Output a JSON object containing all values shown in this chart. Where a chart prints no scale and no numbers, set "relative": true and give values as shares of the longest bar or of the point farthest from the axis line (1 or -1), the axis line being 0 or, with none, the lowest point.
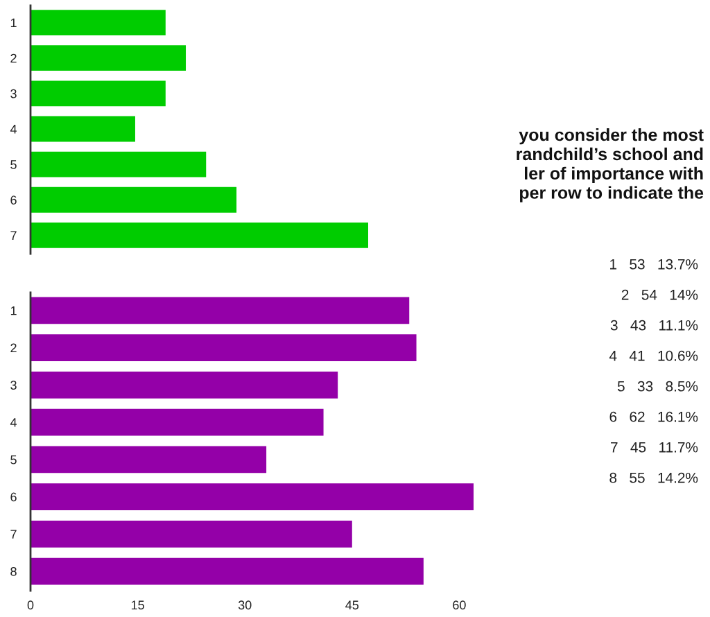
{
  "chart_data": [
    {
      "type": "bar",
      "orientation": "horizontal",
      "relative": true,
      "categories": [
        "1",
        "2",
        "3",
        "4",
        "5",
        "6",
        "7"
      ],
      "series": [
        {
          "color": "#00cc00",
          "values": [
            0.4,
            0.46,
            0.4,
            0.31,
            0.52,
            0.61,
            1
          ]
        }
      ]
    },
    {
      "type": "bar",
      "orientation": "horizontal",
      "categories": [
        "1",
        "2",
        "3",
        "4",
        "5",
        "6",
        "7",
        "8"
      ],
      "series": [
        {
          "color": "#9400a8",
          "values": [
            53,
            54,
            43,
            41,
            33,
            62,
            45,
            55
          ]
        }
      ],
      "xlim": [
        0,
        62
      ],
      "xticks": [
        0,
        15,
        30,
        45,
        60
      ]
    },
    {
      "type": "other",
      "title": "you consider the most\nrandchild’s school and\nler of importance with\nper row to indicate the",
      "annotations": [
        "1   53   13.7%",
        "2   54   14%",
        "3   43   11.1%",
        "4   41   10.6%",
        "5   33   8.5%",
        "6   62   16.1%",
        "7   45   11.7%",
        "8   55   14.2%"
      ]
    }
  ]
}
